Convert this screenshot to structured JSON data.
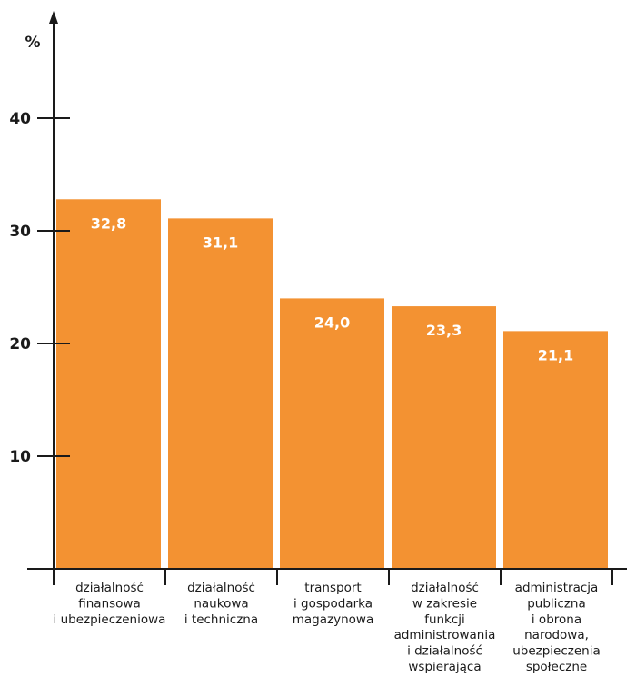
{
  "chart_data": {
    "type": "bar",
    "ylabel": "%",
    "ylim": [
      0,
      40
    ],
    "yticks": [
      10,
      20,
      30,
      40
    ],
    "grid": false,
    "bar_color": "#f39232",
    "axis_color": "#1a1a1a",
    "value_label_color": "#ffffff",
    "categories": [
      [
        "działalność",
        "finansowa",
        "i ubezpieczeniowa"
      ],
      [
        "działalność",
        "naukowa",
        "i techniczna"
      ],
      [
        "transport",
        "i gospodarka",
        "magazynowa"
      ],
      [
        "działalność",
        "w zakresie",
        "funkcji",
        "administrowania",
        "i działalność",
        "wspierająca"
      ],
      [
        "administracja",
        "publiczna",
        "i obrona",
        "narodowa,",
        "ubezpieczenia",
        "społeczne"
      ]
    ],
    "values": [
      32.8,
      31.1,
      24.0,
      23.3,
      21.1
    ],
    "value_labels": [
      "32,8",
      "31,1",
      "24,0",
      "23,3",
      "21,1"
    ]
  }
}
